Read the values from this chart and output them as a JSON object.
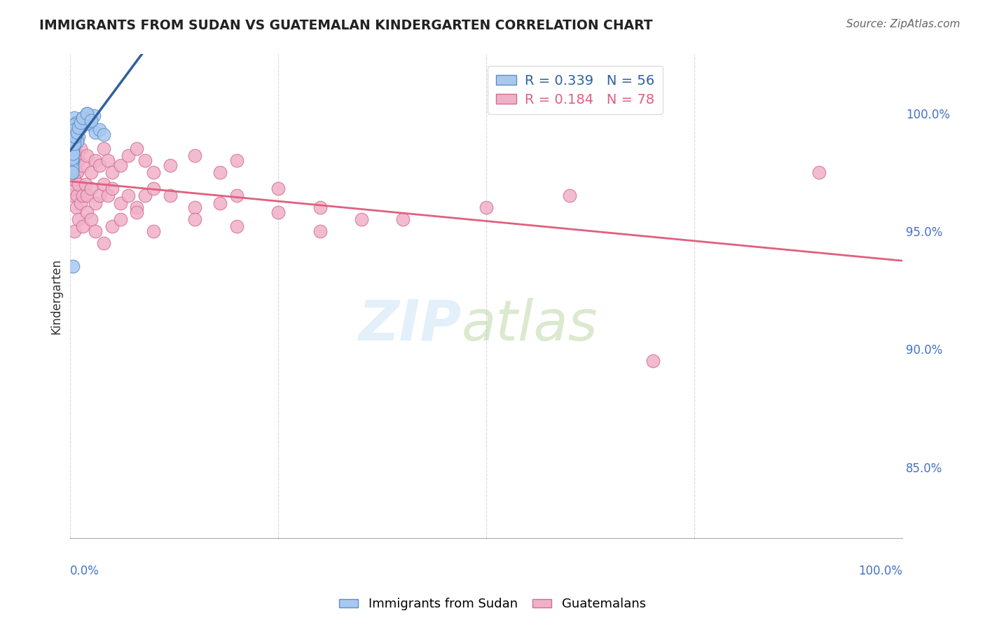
{
  "title": "IMMIGRANTS FROM SUDAN VS GUATEMALAN KINDERGARTEN CORRELATION CHART",
  "source": "Source: ZipAtlas.com",
  "ylabel": "Kindergarten",
  "y_ticks": [
    85.0,
    90.0,
    95.0,
    100.0
  ],
  "y_tick_labels": [
    "85.0%",
    "90.0%",
    "95.0%",
    "100.0%"
  ],
  "xlim": [
    0.0,
    1.0
  ],
  "ylim": [
    82.0,
    102.5
  ],
  "series_blue": {
    "color": "#a8c8f0",
    "edge_color": "#6090c0",
    "line_color": "#3060a0",
    "R": 0.339,
    "N": 56,
    "x": [
      0.002,
      0.003,
      0.004,
      0.005,
      0.003,
      0.006,
      0.002,
      0.004,
      0.003,
      0.005,
      0.007,
      0.002,
      0.003,
      0.002,
      0.004,
      0.005,
      0.003,
      0.002,
      0.006,
      0.003,
      0.002,
      0.004,
      0.003,
      0.005,
      0.002,
      0.003,
      0.004,
      0.002,
      0.003,
      0.005,
      0.015,
      0.02,
      0.025,
      0.03,
      0.01,
      0.012,
      0.018,
      0.008,
      0.022,
      0.028,
      0.035,
      0.04,
      0.002,
      0.003,
      0.004,
      0.002,
      0.003,
      0.005,
      0.006,
      0.008,
      0.01,
      0.012,
      0.015,
      0.02,
      0.003,
      0.025
    ],
    "y": [
      98.5,
      99.2,
      99.5,
      99.8,
      98.0,
      99.0,
      97.5,
      98.8,
      99.1,
      99.3,
      99.6,
      98.2,
      98.7,
      97.8,
      99.0,
      99.4,
      98.5,
      97.9,
      99.2,
      98.3,
      98.0,
      98.6,
      99.0,
      99.5,
      97.6,
      98.4,
      99.1,
      97.7,
      98.9,
      99.3,
      99.8,
      100.0,
      99.5,
      99.2,
      99.0,
      99.4,
      99.7,
      98.8,
      99.6,
      99.9,
      99.3,
      99.1,
      98.1,
      98.5,
      98.9,
      97.5,
      98.3,
      98.7,
      99.0,
      99.2,
      99.4,
      99.6,
      99.8,
      100.0,
      93.5,
      99.7
    ]
  },
  "series_pink": {
    "color": "#f0b0c8",
    "edge_color": "#d07090",
    "line_color": "#e06080",
    "R": 0.184,
    "N": 78,
    "x": [
      0.003,
      0.004,
      0.005,
      0.006,
      0.007,
      0.008,
      0.003,
      0.005,
      0.004,
      0.006,
      0.01,
      0.012,
      0.008,
      0.015,
      0.02,
      0.025,
      0.03,
      0.035,
      0.04,
      0.045,
      0.05,
      0.06,
      0.07,
      0.08,
      0.09,
      0.1,
      0.12,
      0.15,
      0.18,
      0.2,
      0.003,
      0.004,
      0.005,
      0.007,
      0.008,
      0.01,
      0.012,
      0.015,
      0.018,
      0.02,
      0.025,
      0.03,
      0.035,
      0.04,
      0.045,
      0.05,
      0.06,
      0.07,
      0.08,
      0.09,
      0.1,
      0.12,
      0.15,
      0.18,
      0.2,
      0.25,
      0.3,
      0.35,
      0.005,
      0.01,
      0.015,
      0.02,
      0.025,
      0.03,
      0.04,
      0.05,
      0.06,
      0.08,
      0.1,
      0.15,
      0.2,
      0.25,
      0.3,
      0.4,
      0.5,
      0.6,
      0.7,
      0.9
    ],
    "y": [
      99.0,
      98.5,
      97.8,
      98.2,
      97.5,
      98.8,
      97.2,
      98.0,
      99.2,
      98.5,
      98.0,
      98.5,
      97.5,
      97.8,
      98.2,
      97.5,
      98.0,
      97.8,
      98.5,
      98.0,
      97.5,
      97.8,
      98.2,
      98.5,
      98.0,
      97.5,
      97.8,
      98.2,
      97.5,
      98.0,
      96.5,
      96.8,
      97.2,
      96.0,
      96.5,
      97.0,
      96.2,
      96.5,
      97.0,
      96.5,
      96.8,
      96.2,
      96.5,
      97.0,
      96.5,
      96.8,
      96.2,
      96.5,
      96.0,
      96.5,
      96.8,
      96.5,
      96.0,
      96.2,
      96.5,
      96.8,
      96.0,
      95.5,
      95.0,
      95.5,
      95.2,
      95.8,
      95.5,
      95.0,
      94.5,
      95.2,
      95.5,
      95.8,
      95.0,
      95.5,
      95.2,
      95.8,
      95.0,
      95.5,
      96.0,
      96.5,
      89.5,
      97.5
    ]
  },
  "background_color": "#ffffff",
  "grid_color": "#cccccc",
  "title_color": "#222222",
  "axis_label_color": "#4472c4",
  "tick_color": "#4472c4"
}
